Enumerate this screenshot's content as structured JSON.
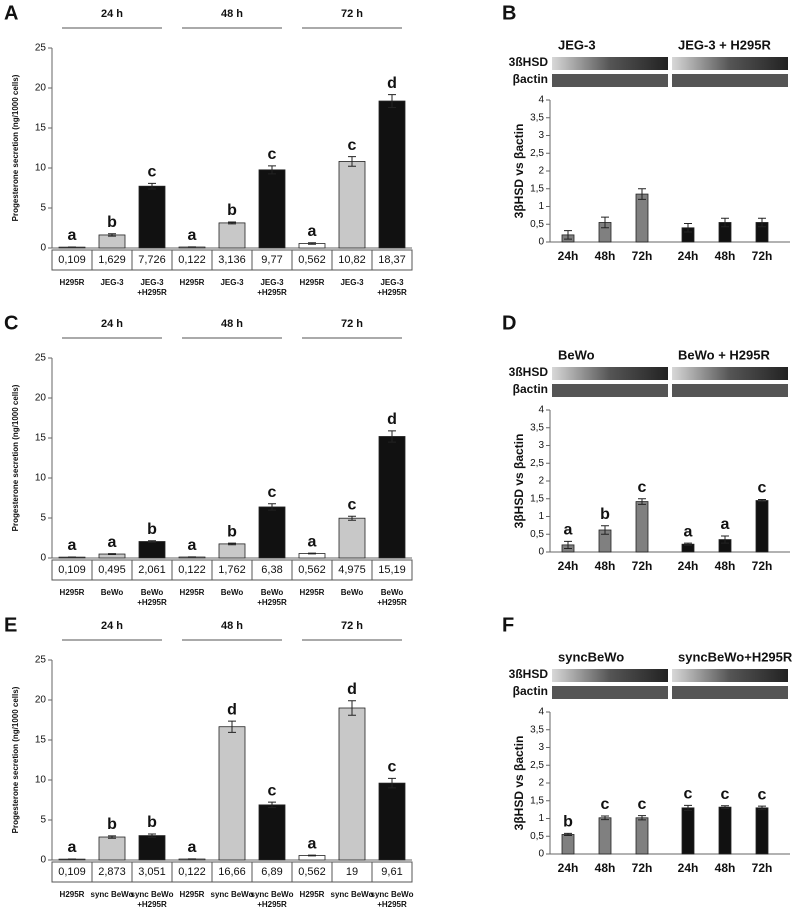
{
  "chart_data": [
    {
      "type": "bar",
      "panel": "A",
      "groups": [
        "24 h",
        "48 h",
        "72 h"
      ],
      "ylabel": "Progesterone secretion (ng/1000 cells)",
      "ylim": [
        0,
        25
      ],
      "yticks": [
        0,
        5,
        10,
        15,
        20,
        25
      ],
      "categories": [
        "H295R",
        "JEG-3",
        "JEG-3 +H295R",
        "H295R",
        "JEG-3",
        "JEG-3 +H295R",
        "H295R",
        "JEG-3",
        "JEG-3 +H295R"
      ],
      "values": [
        0.109,
        1.629,
        7.726,
        0.122,
        3.136,
        9.77,
        0.562,
        10.82,
        18.37
      ],
      "value_labels": [
        "0,109",
        "1,629",
        "7,726",
        "0,122",
        "3,136",
        "9,77",
        "0,562",
        "10,82",
        "18,37"
      ],
      "errors": [
        0.02,
        0.15,
        0.35,
        0.02,
        0.12,
        0.5,
        0.1,
        0.6,
        0.8
      ],
      "letters": [
        "a",
        "b",
        "c",
        "a",
        "b",
        "c",
        "a",
        "c",
        "d"
      ],
      "colors": [
        "#ffffff",
        "#c8c8c8",
        "#111111",
        "#ffffff",
        "#c8c8c8",
        "#111111",
        "#ffffff",
        "#c8c8c8",
        "#111111"
      ]
    },
    {
      "type": "bar",
      "panel": "B",
      "groups": [
        "JEG-3",
        "JEG-3 + H295R"
      ],
      "blot_labels": [
        "3ßHSD",
        "βactin"
      ],
      "ylabel": "3βHSD vs βactin",
      "ylim": [
        0,
        4
      ],
      "yticks": [
        0,
        {
          "value": 0.5,
          "label": "0,5"
        },
        1,
        {
          "value": 1.5,
          "label": "1,5"
        },
        2,
        {
          "value": 2.5,
          "label": "2,5"
        },
        3,
        {
          "value": 3.5,
          "label": "3,5"
        },
        4
      ],
      "categories": [
        "24h",
        "48h",
        "72h",
        "24h",
        "48h",
        "72h"
      ],
      "values": [
        0.2,
        0.55,
        1.35,
        0.4,
        0.55,
        0.55
      ],
      "errors": [
        0.12,
        0.15,
        0.15,
        0.12,
        0.12,
        0.12
      ],
      "colors": [
        "#808080",
        "#808080",
        "#808080",
        "#111111",
        "#111111",
        "#111111"
      ]
    },
    {
      "type": "bar",
      "panel": "C",
      "groups": [
        "24 h",
        "48 h",
        "72 h"
      ],
      "ylabel": "Progesterone secretion (ng/1000 cells)",
      "ylim": [
        0,
        25
      ],
      "yticks": [
        0,
        5,
        10,
        15,
        20,
        25
      ],
      "categories": [
        "H295R",
        "BeWo",
        "BeWo +H295R",
        "H295R",
        "BeWo",
        "BeWo +H295R",
        "H295R",
        "BeWo",
        "BeWo +H295R"
      ],
      "values": [
        0.109,
        0.495,
        2.061,
        0.122,
        1.762,
        6.38,
        0.562,
        4.975,
        15.19
      ],
      "value_labels": [
        "0,109",
        "0,495",
        "2,061",
        "0,122",
        "1,762",
        "6,38",
        "0,562",
        "4,975",
        "15,19"
      ],
      "errors": [
        0.02,
        0.05,
        0.1,
        0.02,
        0.1,
        0.4,
        0.05,
        0.25,
        0.7
      ],
      "letters": [
        "a",
        "a",
        "b",
        "a",
        "b",
        "c",
        "a",
        "c",
        "d"
      ],
      "colors": [
        "#ffffff",
        "#c8c8c8",
        "#111111",
        "#ffffff",
        "#c8c8c8",
        "#111111",
        "#ffffff",
        "#c8c8c8",
        "#111111"
      ]
    },
    {
      "type": "bar",
      "panel": "D",
      "groups": [
        "BeWo",
        "BeWo + H295R"
      ],
      "blot_labels": [
        "3ßHSD",
        "βactin"
      ],
      "ylabel": "3βHSD vs βactin",
      "ylim": [
        0,
        4
      ],
      "yticks": [
        0,
        {
          "value": 0.5,
          "label": "0,5"
        },
        1,
        {
          "value": 1.5,
          "label": "1,5"
        },
        2,
        {
          "value": 2.5,
          "label": "2,5"
        },
        3,
        {
          "value": 3.5,
          "label": "3,5"
        },
        4
      ],
      "categories": [
        "24h",
        "48h",
        "72h",
        "24h",
        "48h",
        "72h"
      ],
      "values": [
        0.2,
        0.62,
        1.42,
        0.22,
        0.35,
        1.45
      ],
      "errors": [
        0.1,
        0.12,
        0.08,
        0.03,
        0.1,
        0.03
      ],
      "letters": [
        "a",
        "b",
        "c",
        "a",
        "a",
        "c"
      ],
      "colors": [
        "#808080",
        "#808080",
        "#808080",
        "#111111",
        "#111111",
        "#111111"
      ]
    },
    {
      "type": "bar",
      "panel": "E",
      "groups": [
        "24 h",
        "48 h",
        "72 h"
      ],
      "ylabel": "Progesterone secretion (ng/1000 cells)",
      "ylim": [
        0,
        25
      ],
      "yticks": [
        0,
        5,
        10,
        15,
        20,
        25
      ],
      "categories": [
        "H295R",
        "sync BeWo",
        "sync BeWo +H295R",
        "H295R",
        "sync BeWo",
        "sync BeWo +H295R",
        "H295R",
        "sync BeWo",
        "sync BeWo +H295R"
      ],
      "values": [
        0.109,
        2.873,
        3.051,
        0.122,
        16.66,
        6.89,
        0.562,
        19,
        9.61
      ],
      "value_labels": [
        "0,109",
        "2,873",
        "3,051",
        "0,122",
        "16,66",
        "6,89",
        "0,562",
        "19",
        "9,61"
      ],
      "errors": [
        0.02,
        0.15,
        0.2,
        0.02,
        0.7,
        0.35,
        0.05,
        0.9,
        0.6
      ],
      "letters": [
        "a",
        "b",
        "b",
        "a",
        "d",
        "c",
        "a",
        "d",
        "c"
      ],
      "colors": [
        "#ffffff",
        "#c8c8c8",
        "#111111",
        "#ffffff",
        "#c8c8c8",
        "#111111",
        "#ffffff",
        "#c8c8c8",
        "#111111"
      ]
    },
    {
      "type": "bar",
      "panel": "F",
      "groups": [
        "syncBeWo",
        "syncBeWo+H295R"
      ],
      "blot_labels": [
        "3ßHSD",
        "βactin"
      ],
      "ylabel": "3βHSD vs βactin",
      "ylim": [
        0,
        4
      ],
      "yticks": [
        0,
        {
          "value": 0.5,
          "label": "0,5"
        },
        1,
        {
          "value": 1.5,
          "label": "1,5"
        },
        2,
        {
          "value": 2.5,
          "label": "2,5"
        },
        3,
        {
          "value": 3.5,
          "label": "3,5"
        },
        4
      ],
      "categories": [
        "24h",
        "48h",
        "72h",
        "24h",
        "48h",
        "72h"
      ],
      "values": [
        0.55,
        1.02,
        1.02,
        1.3,
        1.32,
        1.3
      ],
      "errors": [
        0.03,
        0.05,
        0.06,
        0.07,
        0.04,
        0.05
      ],
      "letters": [
        "b",
        "c",
        "c",
        "c",
        "c",
        "c"
      ],
      "colors": [
        "#808080",
        "#808080",
        "#808080",
        "#111111",
        "#111111",
        "#111111"
      ]
    }
  ]
}
